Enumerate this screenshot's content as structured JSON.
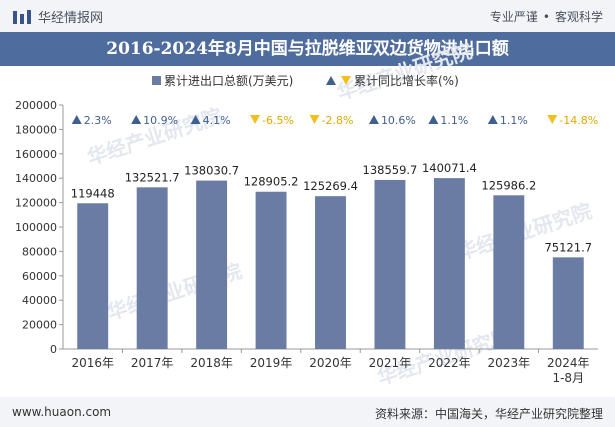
{
  "header": {
    "site_name": "华经情报网",
    "tagline_left": "专业严谨",
    "tagline_right": "客观科学"
  },
  "footer": {
    "url": "www.huaon.com",
    "source": "资料来源：中国海关，华经产业研究院整理"
  },
  "watermark": "华经产业研究院",
  "colors": {
    "bar": "#6a7ba4",
    "up": "#3f5f8f",
    "down": "#f0c020",
    "title_bg": "#4f6c9e"
  },
  "chart_data": {
    "type": "bar",
    "title": "2016-2024年8月中国与拉脱维亚双边货物进出口额",
    "categories": [
      "2016年",
      "2017年",
      "2018年",
      "2019年",
      "2020年",
      "2021年",
      "2022年",
      "2023年",
      "2024年\n1-8月"
    ],
    "series": [
      {
        "name": "累计进出口总额(万美元)",
        "values": [
          119448,
          132521.7,
          138030.7,
          128905.2,
          125269.4,
          138559.7,
          140071.4,
          125986.2,
          75121.7
        ],
        "labels": [
          "119448",
          "132521.7",
          "138030.7",
          "128905.2",
          "125269.4",
          "138559.7",
          "140071.4",
          "125986.2",
          "75121.7"
        ]
      },
      {
        "name": "累计同比增长率(%)",
        "values": [
          2.3,
          10.9,
          4.1,
          -6.5,
          -2.8,
          10.6,
          1.1,
          1.1,
          -14.8
        ],
        "labels": [
          "2.3%",
          "10.9%",
          "4.1%",
          "-6.5%",
          "-2.8%",
          "10.6%",
          "1.1%",
          "1.1%",
          "-14.8%"
        ]
      }
    ],
    "ylim": [
      0,
      200000
    ],
    "yticks": [
      0,
      20000,
      40000,
      60000,
      80000,
      100000,
      120000,
      140000,
      160000,
      180000,
      200000
    ],
    "xlabel": "",
    "ylabel": "",
    "legend": "top-center"
  }
}
